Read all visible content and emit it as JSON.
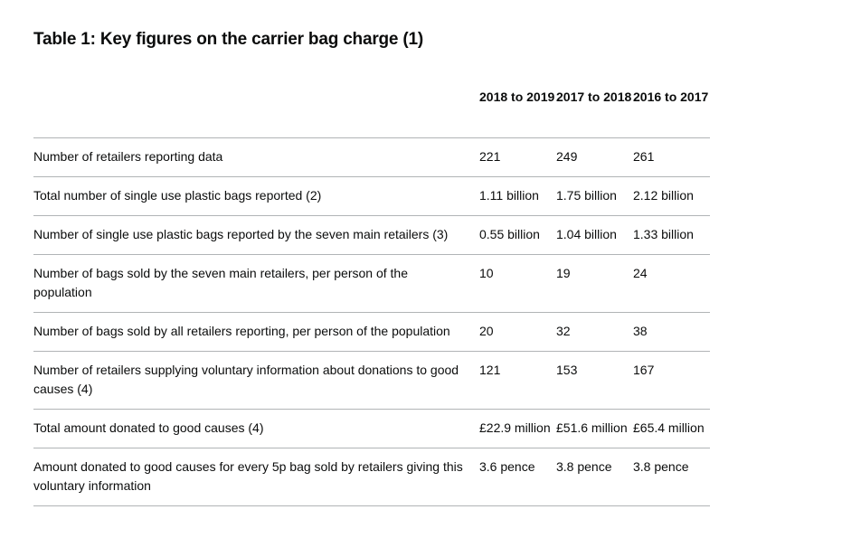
{
  "title": "Table 1: Key figures on the carrier bag charge (1)",
  "columns": [
    "2018 to 2019",
    "2017 to 2018",
    "2016 to 2017"
  ],
  "rows": [
    {
      "label": "Number of retailers reporting data",
      "values": [
        "221",
        "249",
        "261"
      ]
    },
    {
      "label": "Total number of single use plastic bags reported (2)",
      "values": [
        "1.11 billion",
        "1.75 billion",
        "2.12 billion"
      ]
    },
    {
      "label": "Number of single use plastic bags reported by the seven main retailers (3)",
      "values": [
        "0.55 billion",
        "1.04 billion",
        "1.33 billion"
      ]
    },
    {
      "label": "Number of bags sold by the seven main retailers, per person of the population",
      "values": [
        "10",
        "19",
        "24"
      ]
    },
    {
      "label": "Number of bags sold by all retailers reporting, per person of the population",
      "values": [
        "20",
        "32",
        "38"
      ]
    },
    {
      "label": "Number of retailers supplying voluntary information about donations to good causes (4)",
      "values": [
        "121",
        "153",
        "167"
      ]
    },
    {
      "label": "Total amount donated to good causes (4)",
      "values": [
        "£22.9 million",
        "£51.6 million",
        "£65.4 million"
      ]
    },
    {
      "label": "Amount donated to good causes for every 5p bag sold by retailers giving this voluntary information",
      "values": [
        "3.6 pence",
        "3.8 pence",
        "3.8 pence"
      ]
    }
  ]
}
